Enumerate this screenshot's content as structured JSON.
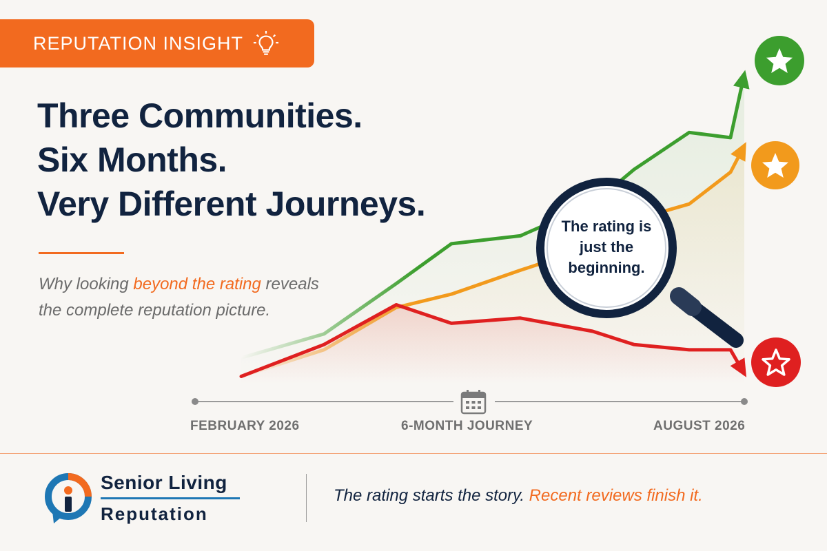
{
  "badge": {
    "label": "REPUTATION INSIGHT",
    "icon": "lightbulb-icon"
  },
  "headline": {
    "line1": "Three Communities.",
    "line2": "Six Months.",
    "line3": "Very Different Journeys."
  },
  "subtitle": {
    "part1": "Why looking ",
    "highlight": "beyond the rating",
    "part2": " reveals the complete reputation picture."
  },
  "magnifier": {
    "text": "The rating is just the beginning."
  },
  "timeline": {
    "start": "FEBRUARY 2026",
    "middle": "6-MONTH JOURNEY",
    "end": "AUGUST 2026",
    "icon": "calendar-icon"
  },
  "brand": {
    "line1": "Senior Living",
    "line2": "Reputation"
  },
  "tagline": {
    "part1": "The rating starts the story. ",
    "highlight": "Recent reviews finish it."
  },
  "colors": {
    "accent": "#f26a1f",
    "navy": "#11233f",
    "green": "#3c9e2e",
    "orange": "#f29a1c",
    "red": "#df2020"
  },
  "chart_data": {
    "type": "line",
    "title": "",
    "xlabel": "",
    "ylabel": "",
    "x": [
      0,
      1,
      2,
      3,
      4,
      5,
      6,
      7,
      8,
      9
    ],
    "series": [
      {
        "color": "green",
        "end_icon": "star-icon",
        "values": [
          0.1,
          0.19,
          0.38,
          0.53,
          0.56,
          0.68,
          0.81,
          0.95,
          0.93,
          1.17
        ]
      },
      {
        "color": "orange",
        "end_icon": "star-icon",
        "values": [
          0.03,
          0.13,
          0.29,
          0.34,
          0.43,
          0.52,
          0.62,
          0.68,
          0.8,
          0.9
        ]
      },
      {
        "color": "red",
        "end_icon": "star-outline-icon",
        "values": [
          0.03,
          0.15,
          0.3,
          0.23,
          0.25,
          0.2,
          0.15,
          0.13,
          0.13,
          0.04
        ]
      }
    ]
  }
}
